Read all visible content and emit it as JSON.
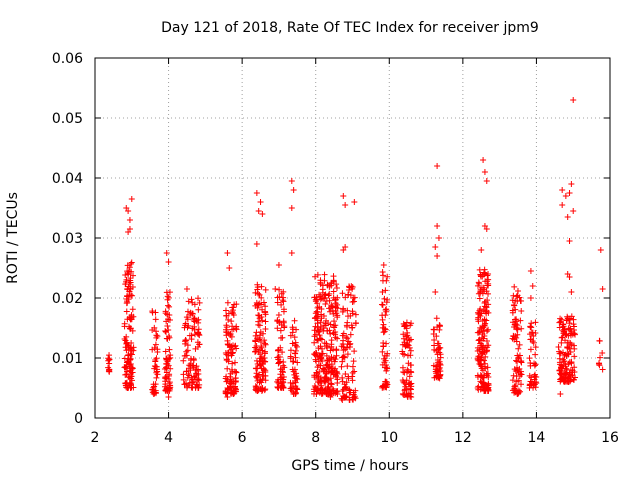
{
  "chart_data": {
    "type": "scatter",
    "title": "Day 121 of 2018, Rate Of TEC Index for receiver jpm9",
    "xlabel": "GPS time / hours",
    "ylabel": "ROTI / TECUs",
    "xlim": [
      2,
      16
    ],
    "ylim": [
      0,
      0.06
    ],
    "xticks": [
      "2",
      "4",
      "6",
      "8",
      "10",
      "12",
      "14",
      "16"
    ],
    "yticks": [
      "0",
      "0.01",
      "0.02",
      "0.03",
      "0.04",
      "0.05",
      "0.06"
    ],
    "grid": true,
    "marker": "+",
    "color": "#ff0000",
    "clusters": [
      {
        "x": [
          2.35,
          2.4
        ],
        "y": [
          0.0075,
          0.0105
        ],
        "n": 12,
        "extra": []
      },
      {
        "x": [
          2.8,
          3.05
        ],
        "y": [
          0.005,
          0.026
        ],
        "n": 130,
        "extra": [
          [
            2.85,
            0.035
          ],
          [
            2.9,
            0.0345
          ],
          [
            2.95,
            0.0315
          ],
          [
            2.9,
            0.031
          ],
          [
            3.0,
            0.0365
          ],
          [
            2.95,
            0.033
          ]
        ]
      },
      {
        "x": [
          3.55,
          3.7
        ],
        "y": [
          0.004,
          0.018
        ],
        "n": 40,
        "extra": [
          [
            3.6,
            0.004
          ]
        ]
      },
      {
        "x": [
          3.9,
          4.05
        ],
        "y": [
          0.0045,
          0.022
        ],
        "n": 70,
        "extra": [
          [
            3.95,
            0.0275
          ],
          [
            4.0,
            0.026
          ],
          [
            4.0,
            0.0035
          ]
        ]
      },
      {
        "x": [
          4.4,
          4.85
        ],
        "y": [
          0.005,
          0.02
        ],
        "n": 110,
        "extra": [
          [
            4.5,
            0.0215
          ]
        ]
      },
      {
        "x": [
          5.55,
          5.85
        ],
        "y": [
          0.004,
          0.02
        ],
        "n": 110,
        "extra": [
          [
            5.6,
            0.0275
          ],
          [
            5.65,
            0.025
          ],
          [
            5.6,
            0.0035
          ]
        ]
      },
      {
        "x": [
          6.35,
          6.65
        ],
        "y": [
          0.0045,
          0.023
        ],
        "n": 120,
        "extra": [
          [
            6.4,
            0.0375
          ],
          [
            6.5,
            0.036
          ],
          [
            6.45,
            0.0345
          ],
          [
            6.4,
            0.029
          ],
          [
            6.55,
            0.034
          ]
        ]
      },
      {
        "x": [
          6.95,
          7.15
        ],
        "y": [
          0.005,
          0.0215
        ],
        "n": 70,
        "extra": [
          [
            7.0,
            0.0255
          ],
          [
            6.9,
            0.0215
          ]
        ]
      },
      {
        "x": [
          7.3,
          7.5
        ],
        "y": [
          0.004,
          0.017
        ],
        "n": 50,
        "extra": [
          [
            7.35,
            0.0395
          ],
          [
            7.4,
            0.038
          ],
          [
            7.35,
            0.035
          ],
          [
            7.35,
            0.0275
          ]
        ]
      },
      {
        "x": [
          7.95,
          8.6
        ],
        "y": [
          0.004,
          0.024
        ],
        "n": 280,
        "extra": [
          [
            8.4,
            0.0035
          ]
        ]
      },
      {
        "x": [
          8.7,
          9.1
        ],
        "y": [
          0.003,
          0.022
        ],
        "n": 100,
        "extra": [
          [
            8.75,
            0.037
          ],
          [
            8.8,
            0.0355
          ],
          [
            9.05,
            0.036
          ],
          [
            8.75,
            0.028
          ],
          [
            8.8,
            0.0285
          ]
        ]
      },
      {
        "x": [
          9.8,
          9.95
        ],
        "y": [
          0.005,
          0.025
        ],
        "n": 55,
        "extra": [
          [
            9.85,
            0.0255
          ],
          [
            9.9,
            0.018
          ]
        ]
      },
      {
        "x": [
          10.35,
          10.6
        ],
        "y": [
          0.0035,
          0.016
        ],
        "n": 75,
        "extra": []
      },
      {
        "x": [
          11.2,
          11.4
        ],
        "y": [
          0.0065,
          0.017
        ],
        "n": 55,
        "extra": [
          [
            11.3,
            0.042
          ],
          [
            11.3,
            0.032
          ],
          [
            11.35,
            0.03
          ],
          [
            11.25,
            0.0285
          ],
          [
            11.3,
            0.027
          ],
          [
            11.25,
            0.021
          ]
        ]
      },
      {
        "x": [
          12.4,
          12.7
        ],
        "y": [
          0.0045,
          0.025
        ],
        "n": 170,
        "extra": [
          [
            12.55,
            0.043
          ],
          [
            12.6,
            0.041
          ],
          [
            12.65,
            0.0395
          ],
          [
            12.6,
            0.032
          ],
          [
            12.65,
            0.0315
          ],
          [
            12.5,
            0.028
          ]
        ]
      },
      {
        "x": [
          13.35,
          13.6
        ],
        "y": [
          0.004,
          0.022
        ],
        "n": 85,
        "extra": []
      },
      {
        "x": [
          13.8,
          14.0
        ],
        "y": [
          0.005,
          0.016
        ],
        "n": 45,
        "extra": [
          [
            13.85,
            0.0245
          ],
          [
            13.9,
            0.022
          ],
          [
            13.85,
            0.02
          ]
        ]
      },
      {
        "x": [
          14.6,
          15.05
        ],
        "y": [
          0.006,
          0.017
        ],
        "n": 140,
        "extra": [
          [
            15.0,
            0.053
          ],
          [
            14.7,
            0.038
          ],
          [
            14.8,
            0.037
          ],
          [
            14.95,
            0.039
          ],
          [
            14.9,
            0.0375
          ],
          [
            14.7,
            0.0355
          ],
          [
            15.0,
            0.0345
          ],
          [
            14.85,
            0.0335
          ],
          [
            14.9,
            0.0295
          ],
          [
            14.85,
            0.024
          ],
          [
            14.9,
            0.0235
          ],
          [
            14.95,
            0.021
          ],
          [
            14.65,
            0.004
          ]
        ]
      },
      {
        "x": [
          15.7,
          15.8
        ],
        "y": [
          0.008,
          0.016
        ],
        "n": 8,
        "extra": [
          [
            15.75,
            0.028
          ],
          [
            15.8,
            0.0215
          ]
        ]
      }
    ]
  }
}
